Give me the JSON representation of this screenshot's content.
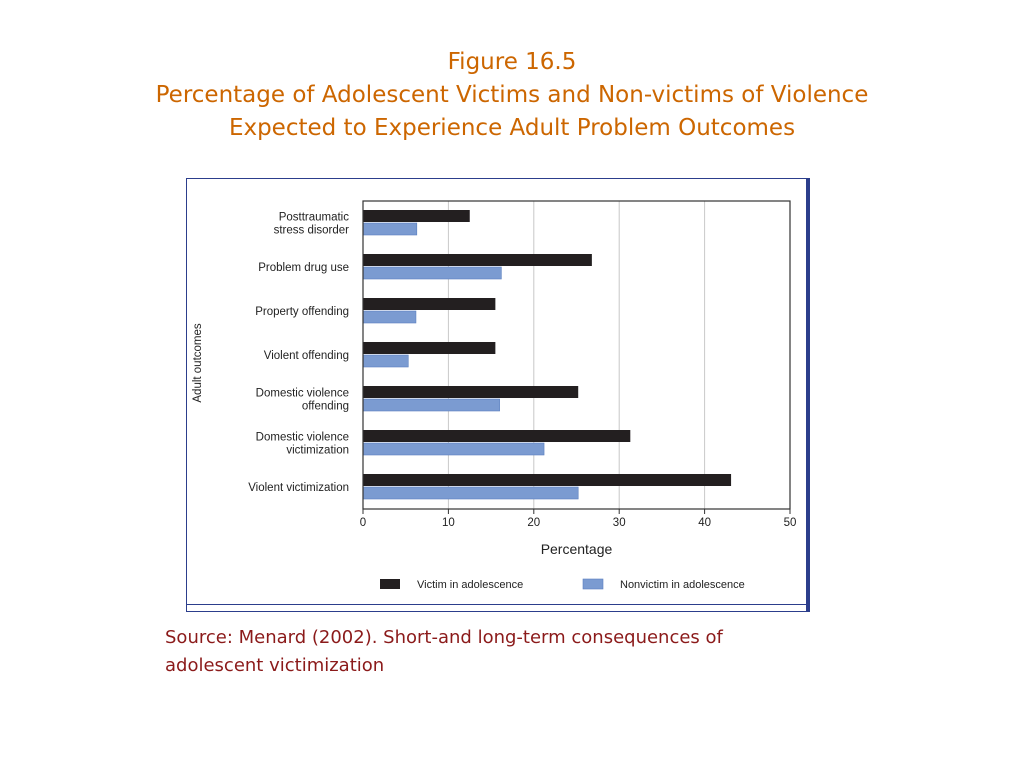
{
  "slide": {
    "title_line1": "Figure 16.5",
    "title_line2": "Percentage of Adolescent Victims and Non-victims of Violence",
    "title_line3": "Expected to Experience Adult Problem Outcomes",
    "source_line1": "Source: Menard (2002). Short-and long-term consequences of",
    "source_line2": "adolescent victimization"
  },
  "chart_data": {
    "type": "bar",
    "orientation": "horizontal",
    "title": "",
    "xlabel": "Percentage",
    "ylabel": "Adult outcomes",
    "xlim": [
      0,
      50
    ],
    "xticks": [
      "0",
      "10",
      "20",
      "30",
      "40",
      "50"
    ],
    "grid": true,
    "legend_position": "bottom",
    "categories": [
      [
        "Posttraumatic",
        "stress disorder"
      ],
      [
        "Problem drug use"
      ],
      [
        "Property offending"
      ],
      [
        "Violent offending"
      ],
      [
        "Domestic violence",
        "offending"
      ],
      [
        "Domestic violence",
        "victimization"
      ],
      [
        "Violent victimization"
      ]
    ],
    "series": [
      {
        "name": "Victim in adolescence",
        "color": "#231f20",
        "values": [
          12.5,
          26.8,
          15.5,
          15.5,
          25.2,
          31.3,
          43.1
        ]
      },
      {
        "name": "Nonvictim in adolescence",
        "color": "#7b9bd1",
        "values": [
          6.3,
          16.2,
          6.2,
          5.3,
          16.0,
          21.2,
          25.2
        ]
      }
    ]
  }
}
